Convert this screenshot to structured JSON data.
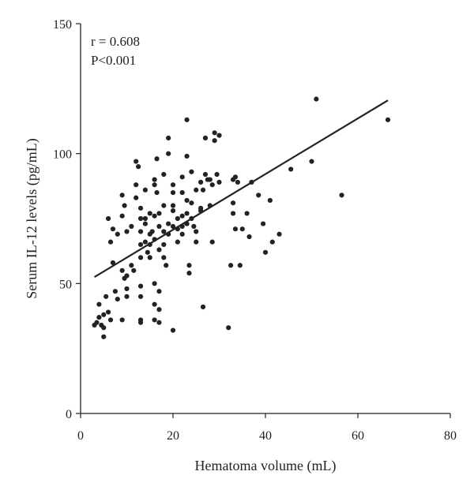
{
  "chart_data": {
    "type": "scatter",
    "xlabel": "Hematoma volume (mL)",
    "ylabel": "Serum IL-12 levels (pg/mL)",
    "xlim": [
      0,
      80
    ],
    "ylim": [
      0,
      150
    ],
    "x_ticks": [
      0,
      20,
      40,
      60,
      80
    ],
    "y_ticks": [
      0,
      50,
      100,
      150
    ],
    "grid": false,
    "annotations": [
      "r = 0.608",
      "P<0.001"
    ],
    "regression": {
      "x": [
        3,
        66.5
      ],
      "y": [
        52.5,
        120.5
      ]
    },
    "series": [
      {
        "points": [
          [
            3,
            34
          ],
          [
            3.5,
            35
          ],
          [
            4,
            42
          ],
          [
            4,
            37
          ],
          [
            4.5,
            34
          ],
          [
            5,
            38
          ],
          [
            5,
            33
          ],
          [
            5,
            29.5
          ],
          [
            5.5,
            45
          ],
          [
            6,
            39
          ],
          [
            6.5,
            36
          ],
          [
            6,
            75
          ],
          [
            6.5,
            66
          ],
          [
            7,
            71
          ],
          [
            7,
            58
          ],
          [
            7.5,
            47
          ],
          [
            8,
            44
          ],
          [
            8,
            69
          ],
          [
            9,
            84
          ],
          [
            9,
            76
          ],
          [
            9,
            55
          ],
          [
            9.5,
            52
          ],
          [
            10,
            53
          ],
          [
            10,
            48
          ],
          [
            10,
            45
          ],
          [
            9,
            36
          ],
          [
            9.5,
            80
          ],
          [
            10,
            70
          ],
          [
            11,
            57
          ],
          [
            11.5,
            55
          ],
          [
            11,
            72
          ],
          [
            12,
            88
          ],
          [
            12,
            83
          ],
          [
            12,
            97
          ],
          [
            12.5,
            95
          ],
          [
            13,
            79
          ],
          [
            13,
            75
          ],
          [
            13,
            70
          ],
          [
            13,
            65
          ],
          [
            13,
            60
          ],
          [
            13,
            49
          ],
          [
            13,
            45
          ],
          [
            13,
            36
          ],
          [
            13,
            35
          ],
          [
            14,
            86
          ],
          [
            14,
            75
          ],
          [
            14,
            73
          ],
          [
            14,
            66
          ],
          [
            14.5,
            62
          ],
          [
            15,
            77
          ],
          [
            15,
            69
          ],
          [
            15,
            65
          ],
          [
            15,
            60
          ],
          [
            15.5,
            70
          ],
          [
            16,
            90
          ],
          [
            16,
            88
          ],
          [
            16,
            76
          ],
          [
            16,
            67
          ],
          [
            16,
            50
          ],
          [
            16,
            42
          ],
          [
            16,
            36
          ],
          [
            16.5,
            98
          ],
          [
            16.5,
            85
          ],
          [
            17,
            77
          ],
          [
            17,
            72
          ],
          [
            17,
            63
          ],
          [
            17,
            47
          ],
          [
            17,
            40
          ],
          [
            17,
            35
          ],
          [
            18,
            92
          ],
          [
            18,
            80
          ],
          [
            18,
            70
          ],
          [
            18,
            65
          ],
          [
            18,
            60
          ],
          [
            18.5,
            57
          ],
          [
            19,
            106
          ],
          [
            19,
            100
          ],
          [
            19,
            73
          ],
          [
            19,
            69
          ],
          [
            20,
            88
          ],
          [
            20,
            85
          ],
          [
            20,
            80
          ],
          [
            20,
            78
          ],
          [
            20,
            72
          ],
          [
            20,
            32
          ],
          [
            21,
            71
          ],
          [
            21,
            66
          ],
          [
            21,
            75
          ],
          [
            22,
            91
          ],
          [
            22,
            85
          ],
          [
            22,
            76
          ],
          [
            22,
            72
          ],
          [
            22,
            69
          ],
          [
            23,
            113
          ],
          [
            23,
            99
          ],
          [
            23,
            82
          ],
          [
            23,
            77
          ],
          [
            23,
            73
          ],
          [
            23.5,
            57
          ],
          [
            23.5,
            54
          ],
          [
            24,
            93
          ],
          [
            24,
            81
          ],
          [
            24,
            75
          ],
          [
            24.5,
            72
          ],
          [
            25,
            70
          ],
          [
            25,
            66
          ],
          [
            25,
            86
          ],
          [
            26,
            89
          ],
          [
            26,
            79
          ],
          [
            26,
            78
          ],
          [
            26.5,
            86
          ],
          [
            26.5,
            41
          ],
          [
            27,
            106
          ],
          [
            27,
            92
          ],
          [
            27.5,
            90
          ],
          [
            28,
            80
          ],
          [
            28,
            90
          ],
          [
            28.5,
            66
          ],
          [
            28.5,
            88
          ],
          [
            29,
            108
          ],
          [
            29,
            105
          ],
          [
            29.5,
            92
          ],
          [
            30,
            89
          ],
          [
            30,
            107
          ],
          [
            32,
            33
          ],
          [
            32.5,
            57
          ],
          [
            33,
            81
          ],
          [
            33,
            77
          ],
          [
            33,
            90
          ],
          [
            33.5,
            91
          ],
          [
            34,
            89
          ],
          [
            33.5,
            71
          ],
          [
            34.5,
            57
          ],
          [
            35,
            71
          ],
          [
            36,
            77
          ],
          [
            36.5,
            68
          ],
          [
            37,
            89
          ],
          [
            38.5,
            84
          ],
          [
            39.5,
            73
          ],
          [
            40,
            62
          ],
          [
            41,
            82
          ],
          [
            41.5,
            66
          ],
          [
            43,
            69
          ],
          [
            45.5,
            94
          ],
          [
            50,
            97
          ],
          [
            51,
            121
          ],
          [
            56.5,
            84
          ],
          [
            66.5,
            113
          ]
        ]
      }
    ]
  }
}
